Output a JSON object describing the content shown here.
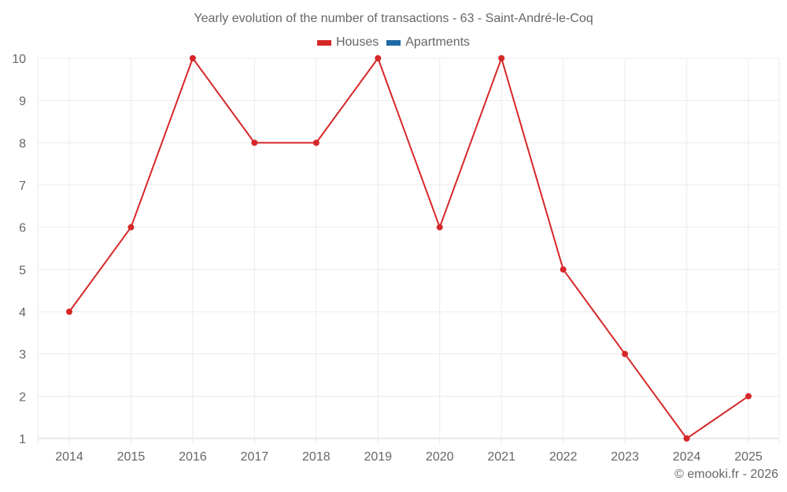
{
  "header": {
    "title": "Yearly evolution of the number of transactions - 63 - Saint-André-le-Coq"
  },
  "legend": {
    "items": [
      {
        "label": "Houses",
        "color": "#d62728"
      },
      {
        "label": "Apartments",
        "color": "#1f6aa5"
      }
    ]
  },
  "footer": {
    "credit": "© emooki.fr - 2026"
  },
  "chart_data": {
    "type": "line",
    "title": "Yearly evolution of the number of transactions - 63 - Saint-André-le-Coq",
    "xlabel": "",
    "ylabel": "",
    "categories": [
      "2014",
      "2015",
      "2016",
      "2017",
      "2018",
      "2019",
      "2020",
      "2021",
      "2022",
      "2023",
      "2024",
      "2025"
    ],
    "series": [
      {
        "name": "Houses",
        "color": "#d62728",
        "values": [
          4,
          6,
          10,
          8,
          8,
          10,
          6,
          10,
          5,
          3,
          1,
          2
        ]
      },
      {
        "name": "Apartments",
        "color": "#1f6aa5",
        "values": []
      }
    ],
    "ylim": [
      1,
      10
    ],
    "yticks": [
      1,
      2,
      3,
      4,
      5,
      6,
      7,
      8,
      9,
      10
    ],
    "grid": true,
    "legend_position": "top"
  }
}
